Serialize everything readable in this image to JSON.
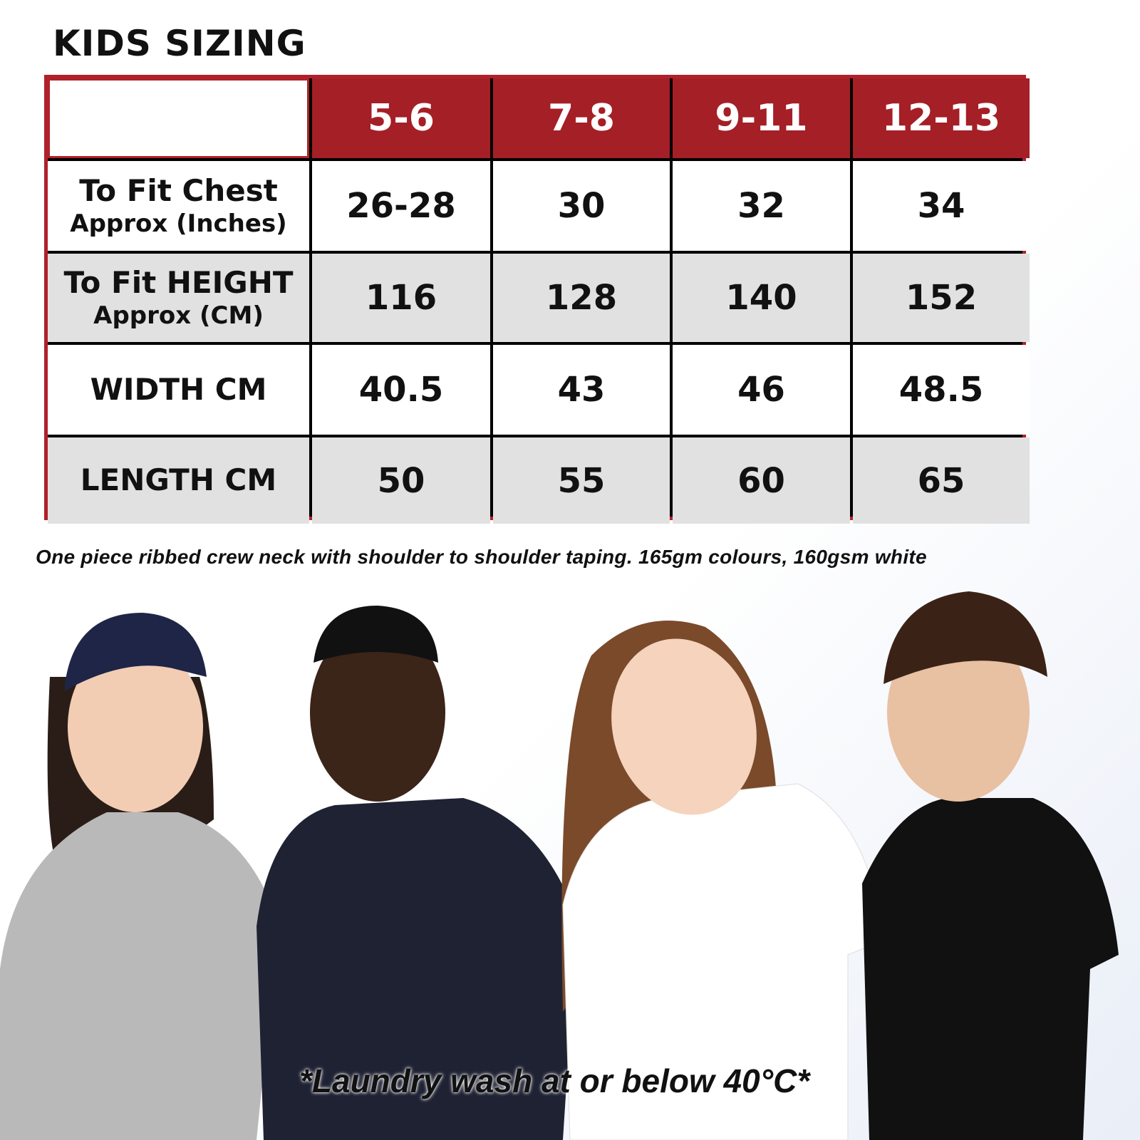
{
  "title": "KIDS SIZING",
  "table": {
    "columns": [
      "5-6",
      "7-8",
      "9-11",
      "12-13"
    ],
    "rows": [
      {
        "label": "To Fit Chest",
        "sublabel": "Approx (Inches)",
        "values": [
          "26-28",
          "30",
          "32",
          "34"
        ]
      },
      {
        "label": "To Fit HEIGHT",
        "sublabel": "Approx (CM)",
        "values": [
          "116",
          "128",
          "140",
          "152"
        ]
      },
      {
        "label": "WIDTH CM",
        "sublabel": "",
        "values": [
          "40.5",
          "43",
          "46",
          "48.5"
        ]
      },
      {
        "label": "LENGTH CM",
        "sublabel": "",
        "values": [
          "50",
          "55",
          "60",
          "65"
        ]
      }
    ]
  },
  "caption": "One piece ribbed crew neck with shoulder to shoulder taping. 165gm colours, 160gsm white",
  "wash_note": "*Laundry wash at or below 40°C*",
  "colors": {
    "header": "#a51f26",
    "border": "#b0212a",
    "alt_row": "#e1e1e1"
  },
  "models": [
    {
      "shirt": "#b9b9b9"
    },
    {
      "shirt": "#1f2233"
    },
    {
      "shirt": "#ffffff"
    },
    {
      "shirt": "#111111"
    }
  ]
}
